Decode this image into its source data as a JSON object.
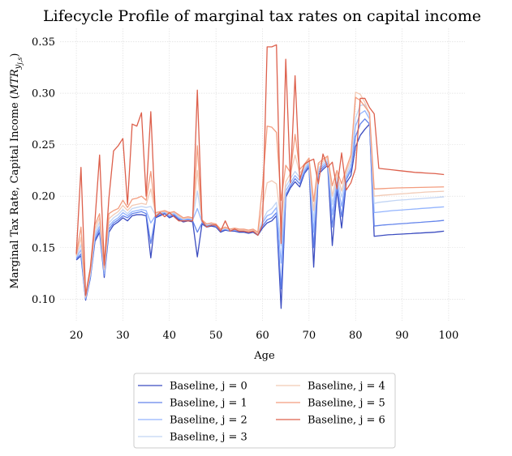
{
  "chart_data": {
    "type": "line",
    "title": "Lifecycle Profile of marginal tax rates on capital income",
    "xlabel": "Age",
    "ylabel": "Marginal Tax Rate, Capital Income (MTRy_{j,s})",
    "ylabel_prefix": "Marginal Tax Rate, Capital Income (",
    "ylabel_math": "MTR",
    "ylabel_sub_y": "y",
    "ylabel_sub_js": "j,s",
    "ylabel_suffix": ")",
    "xlim": [
      16.5,
      103.5
    ],
    "ylim": [
      0.079,
      0.363
    ],
    "xticks": [
      20,
      30,
      40,
      50,
      60,
      70,
      80,
      90,
      100
    ],
    "xtick_labels": [
      "20",
      "30",
      "40",
      "50",
      "60",
      "70",
      "80",
      "90",
      "100"
    ],
    "yticks": [
      0.1,
      0.15,
      0.2,
      0.25,
      0.3,
      0.35
    ],
    "ytick_labels": [
      "0.10",
      "0.15",
      "0.20",
      "0.25",
      "0.30",
      "0.35"
    ],
    "grid": true,
    "legend_position": "bottom-center, below axes, 2 columns",
    "x": [
      20,
      21,
      22,
      23,
      24,
      25,
      26,
      27,
      28,
      29,
      30,
      31,
      32,
      33,
      34,
      35,
      36,
      37,
      38,
      39,
      40,
      41,
      42,
      43,
      44,
      45,
      46,
      47,
      48,
      49,
      50,
      51,
      52,
      53,
      54,
      55,
      56,
      57,
      58,
      59,
      60,
      61,
      62,
      63,
      64,
      65,
      66,
      67,
      68,
      69,
      70,
      71,
      72,
      73,
      74,
      75,
      76,
      77,
      78,
      79,
      80,
      81,
      82,
      83,
      84,
      85,
      86,
      87,
      88,
      89,
      90,
      91,
      92,
      93,
      94,
      95,
      96,
      97,
      98,
      99
    ],
    "series": [
      {
        "name": "Baseline, j = 0",
        "color": "#3b4cc0",
        "values": [
          0.138,
          0.142,
          0.099,
          0.12,
          0.156,
          0.165,
          0.121,
          0.165,
          0.172,
          0.175,
          0.179,
          0.176,
          0.181,
          0.182,
          0.182,
          0.181,
          0.14,
          0.179,
          0.181,
          0.183,
          0.179,
          0.181,
          0.177,
          0.175,
          0.176,
          0.175,
          0.141,
          0.173,
          0.17,
          0.171,
          0.17,
          0.165,
          0.167,
          0.166,
          0.166,
          0.165,
          0.165,
          0.164,
          0.165,
          0.162,
          0.169,
          0.174,
          0.176,
          0.181,
          0.091,
          0.199,
          0.208,
          0.214,
          0.209,
          0.222,
          0.228,
          0.131,
          0.221,
          0.226,
          0.23,
          0.152,
          0.206,
          0.169,
          0.213,
          0.22,
          0.248,
          0.259,
          0.265,
          0.27,
          0.161,
          0.1615,
          0.162,
          0.1625,
          0.1627,
          0.163,
          0.1632,
          0.1635,
          0.1637,
          0.164,
          0.1642,
          0.1645,
          0.1647,
          0.165,
          0.1655,
          0.166
        ]
      },
      {
        "name": "Baseline, j = 1",
        "color": "#6384eb",
        "values": [
          0.139,
          0.144,
          0.1,
          0.121,
          0.158,
          0.168,
          0.123,
          0.168,
          0.174,
          0.177,
          0.181,
          0.179,
          0.183,
          0.184,
          0.185,
          0.183,
          0.154,
          0.18,
          0.182,
          0.184,
          0.18,
          0.182,
          0.178,
          0.176,
          0.177,
          0.176,
          0.165,
          0.174,
          0.171,
          0.172,
          0.171,
          0.166,
          0.168,
          0.166,
          0.167,
          0.166,
          0.166,
          0.165,
          0.166,
          0.163,
          0.171,
          0.177,
          0.179,
          0.184,
          0.11,
          0.201,
          0.21,
          0.217,
          0.212,
          0.223,
          0.23,
          0.15,
          0.223,
          0.228,
          0.232,
          0.17,
          0.21,
          0.18,
          0.216,
          0.225,
          0.258,
          0.27,
          0.275,
          0.27,
          0.171,
          0.1715,
          0.172,
          0.1723,
          0.1726,
          0.173,
          0.1733,
          0.1736,
          0.174,
          0.1743,
          0.1746,
          0.175,
          0.1753,
          0.1756,
          0.176,
          0.1765
        ]
      },
      {
        "name": "Baseline, j = 2",
        "color": "#93b4fe",
        "values": [
          0.14,
          0.148,
          0.101,
          0.123,
          0.161,
          0.171,
          0.125,
          0.171,
          0.176,
          0.179,
          0.184,
          0.181,
          0.185,
          0.186,
          0.187,
          0.186,
          0.174,
          0.181,
          0.183,
          0.184,
          0.181,
          0.183,
          0.179,
          0.177,
          0.178,
          0.177,
          0.188,
          0.175,
          0.172,
          0.173,
          0.171,
          0.167,
          0.168,
          0.167,
          0.167,
          0.166,
          0.166,
          0.165,
          0.166,
          0.163,
          0.174,
          0.181,
          0.183,
          0.189,
          0.135,
          0.205,
          0.213,
          0.22,
          0.215,
          0.225,
          0.232,
          0.165,
          0.225,
          0.23,
          0.234,
          0.182,
          0.214,
          0.19,
          0.218,
          0.228,
          0.268,
          0.28,
          0.283,
          0.275,
          0.184,
          0.1845,
          0.185,
          0.1855,
          0.186,
          0.1863,
          0.1866,
          0.187,
          0.1873,
          0.1876,
          0.188,
          0.1883,
          0.1886,
          0.189,
          0.1893,
          0.1896
        ]
      },
      {
        "name": "Baseline, j = 3",
        "color": "#c2d5f4",
        "values": [
          0.141,
          0.153,
          0.102,
          0.124,
          0.164,
          0.175,
          0.127,
          0.174,
          0.179,
          0.182,
          0.187,
          0.183,
          0.188,
          0.189,
          0.19,
          0.189,
          0.19,
          0.182,
          0.184,
          0.185,
          0.182,
          0.184,
          0.18,
          0.178,
          0.179,
          0.178,
          0.205,
          0.176,
          0.172,
          0.173,
          0.172,
          0.167,
          0.169,
          0.167,
          0.168,
          0.167,
          0.167,
          0.166,
          0.167,
          0.164,
          0.176,
          0.185,
          0.188,
          0.194,
          0.152,
          0.209,
          0.217,
          0.224,
          0.218,
          0.227,
          0.234,
          0.176,
          0.227,
          0.232,
          0.236,
          0.192,
          0.218,
          0.199,
          0.221,
          0.232,
          0.276,
          0.288,
          0.289,
          0.278,
          0.193,
          0.194,
          0.1945,
          0.195,
          0.1955,
          0.196,
          0.1963,
          0.1966,
          0.197,
          0.1973,
          0.1976,
          0.198,
          0.1983,
          0.1986,
          0.199,
          0.1993
        ]
      },
      {
        "name": "Baseline, j = 4",
        "color": "#f2cab5",
        "values": [
          0.142,
          0.16,
          0.102,
          0.126,
          0.168,
          0.179,
          0.129,
          0.178,
          0.182,
          0.185,
          0.191,
          0.186,
          0.191,
          0.192,
          0.193,
          0.192,
          0.207,
          0.183,
          0.185,
          0.185,
          0.183,
          0.185,
          0.181,
          0.178,
          0.179,
          0.178,
          0.225,
          0.176,
          0.173,
          0.174,
          0.172,
          0.168,
          0.169,
          0.168,
          0.168,
          0.167,
          0.167,
          0.166,
          0.167,
          0.164,
          0.19,
          0.213,
          0.215,
          0.212,
          0.174,
          0.214,
          0.222,
          0.24,
          0.222,
          0.229,
          0.236,
          0.186,
          0.23,
          0.234,
          0.238,
          0.2,
          0.222,
          0.205,
          0.224,
          0.236,
          0.301,
          0.299,
          0.291,
          0.28,
          0.2,
          0.2005,
          0.201,
          0.2013,
          0.2016,
          0.202,
          0.2023,
          0.2026,
          0.203,
          0.2033,
          0.2036,
          0.204,
          0.2042,
          0.2044,
          0.2046,
          0.2048
        ]
      },
      {
        "name": "Baseline, j = 5",
        "color": "#f39c7e",
        "values": [
          0.143,
          0.17,
          0.103,
          0.128,
          0.172,
          0.183,
          0.131,
          0.183,
          0.186,
          0.188,
          0.196,
          0.189,
          0.197,
          0.198,
          0.2,
          0.196,
          0.224,
          0.184,
          0.185,
          0.186,
          0.184,
          0.185,
          0.182,
          0.179,
          0.18,
          0.179,
          0.249,
          0.177,
          0.173,
          0.174,
          0.173,
          0.168,
          0.17,
          0.168,
          0.169,
          0.168,
          0.168,
          0.167,
          0.168,
          0.165,
          0.21,
          0.268,
          0.267,
          0.262,
          0.196,
          0.23,
          0.223,
          0.26,
          0.226,
          0.231,
          0.237,
          0.195,
          0.232,
          0.236,
          0.239,
          0.21,
          0.225,
          0.212,
          0.227,
          0.24,
          0.296,
          0.293,
          0.287,
          0.281,
          0.207,
          0.2072,
          0.2074,
          0.2076,
          0.2078,
          0.208,
          0.2081,
          0.2082,
          0.2083,
          0.2084,
          0.2085,
          0.2086,
          0.2087,
          0.2088,
          0.2089,
          0.209
        ]
      },
      {
        "name": "Baseline, j = 6",
        "color": "#dd604c",
        "values": [
          0.144,
          0.228,
          0.104,
          0.13,
          0.176,
          0.24,
          0.133,
          0.198,
          0.244,
          0.249,
          0.256,
          0.192,
          0.27,
          0.268,
          0.281,
          0.2,
          0.282,
          0.18,
          0.184,
          0.18,
          0.184,
          0.18,
          0.176,
          0.176,
          0.176,
          0.176,
          0.303,
          0.176,
          0.17,
          0.172,
          0.172,
          0.166,
          0.176,
          0.166,
          0.168,
          0.166,
          0.166,
          0.165,
          0.166,
          0.162,
          0.172,
          0.345,
          0.345,
          0.347,
          0.154,
          0.333,
          0.213,
          0.317,
          0.216,
          0.231,
          0.234,
          0.236,
          0.212,
          0.241,
          0.228,
          0.233,
          0.207,
          0.242,
          0.206,
          0.213,
          0.227,
          0.295,
          0.295,
          0.286,
          0.28,
          0.227,
          0.2265,
          0.226,
          0.2255,
          0.225,
          0.2245,
          0.224,
          0.2235,
          0.223,
          0.2228,
          0.2225,
          0.2222,
          0.222,
          0.2215,
          0.221
        ]
      }
    ]
  }
}
